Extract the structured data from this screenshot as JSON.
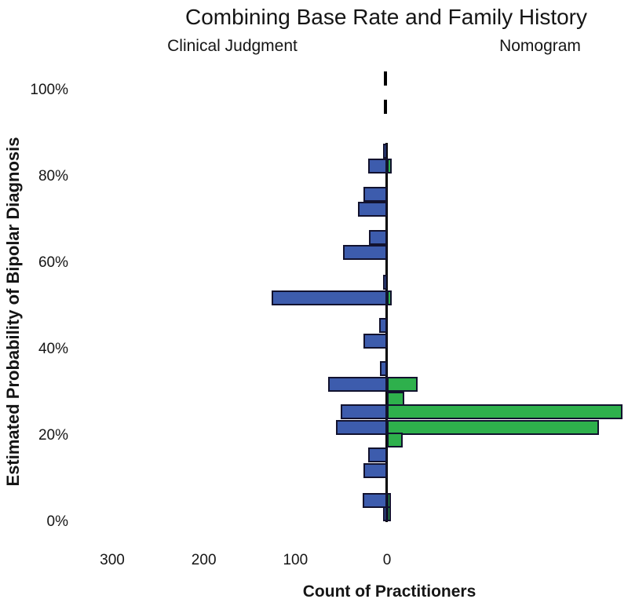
{
  "chart_data": {
    "type": "bar",
    "variant": "bidirectional-horizontal-histogram",
    "title": "Combining Base Rate and Family History",
    "left_panel_label": "Clinical Judgment",
    "right_panel_label": "Nomogram",
    "xlabel": "Count of Practitioners",
    "ylabel": "Estimated Probability of Bipolar Diagnosis",
    "y_ticks": [
      "100%",
      "80%",
      "60%",
      "40%",
      "20%",
      "0%"
    ],
    "x_ticks": [
      300,
      200,
      100,
      0
    ],
    "ylim_pct": [
      0,
      100
    ],
    "xlim_counts": {
      "left_max": 350,
      "right_max": 263
    },
    "grid": false,
    "legend_position": "none",
    "series": [
      {
        "name": "Clinical Judgment",
        "side": "left",
        "color": "#3d5cad"
      },
      {
        "name": "Nomogram",
        "side": "right",
        "color": "#2eb04c"
      }
    ],
    "rows": [
      {
        "probability_pct": 86.0,
        "clinical_judgment": 4,
        "nomogram": 0
      },
      {
        "probability_pct": 82.5,
        "clinical_judgment": 21,
        "nomogram": 5
      },
      {
        "probability_pct": 76.0,
        "clinical_judgment": 26,
        "nomogram": 0
      },
      {
        "probability_pct": 72.5,
        "clinical_judgment": 32,
        "nomogram": 0
      },
      {
        "probability_pct": 66.0,
        "clinical_judgment": 20,
        "nomogram": 0
      },
      {
        "probability_pct": 62.5,
        "clinical_judgment": 48,
        "nomogram": 0
      },
      {
        "probability_pct": 55.5,
        "clinical_judgment": 4,
        "nomogram": 0
      },
      {
        "probability_pct": 52.0,
        "clinical_judgment": 126,
        "nomogram": 5
      },
      {
        "probability_pct": 45.5,
        "clinical_judgment": 9,
        "nomogram": 0
      },
      {
        "probability_pct": 42.0,
        "clinical_judgment": 26,
        "nomogram": 0
      },
      {
        "probability_pct": 35.5,
        "clinical_judgment": 8,
        "nomogram": 0
      },
      {
        "probability_pct": 32.0,
        "clinical_judgment": 64,
        "nomogram": 33
      },
      {
        "probability_pct": 28.5,
        "clinical_judgment": 0,
        "nomogram": 19
      },
      {
        "probability_pct": 25.5,
        "clinical_judgment": 51,
        "nomogram": 257
      },
      {
        "probability_pct": 22.0,
        "clinical_judgment": 56,
        "nomogram": 231
      },
      {
        "probability_pct": 19.0,
        "clinical_judgment": 0,
        "nomogram": 17
      },
      {
        "probability_pct": 15.5,
        "clinical_judgment": 21,
        "nomogram": 0
      },
      {
        "probability_pct": 12.0,
        "clinical_judgment": 26,
        "nomogram": 0
      },
      {
        "probability_pct": 5.0,
        "clinical_judgment": 27,
        "nomogram": 4
      },
      {
        "probability_pct": 2.0,
        "clinical_judgment": 4,
        "nomogram": 2
      }
    ],
    "colors": {
      "bar_border": "#12122e",
      "axis_line": "#000000",
      "text": "#111111"
    }
  }
}
